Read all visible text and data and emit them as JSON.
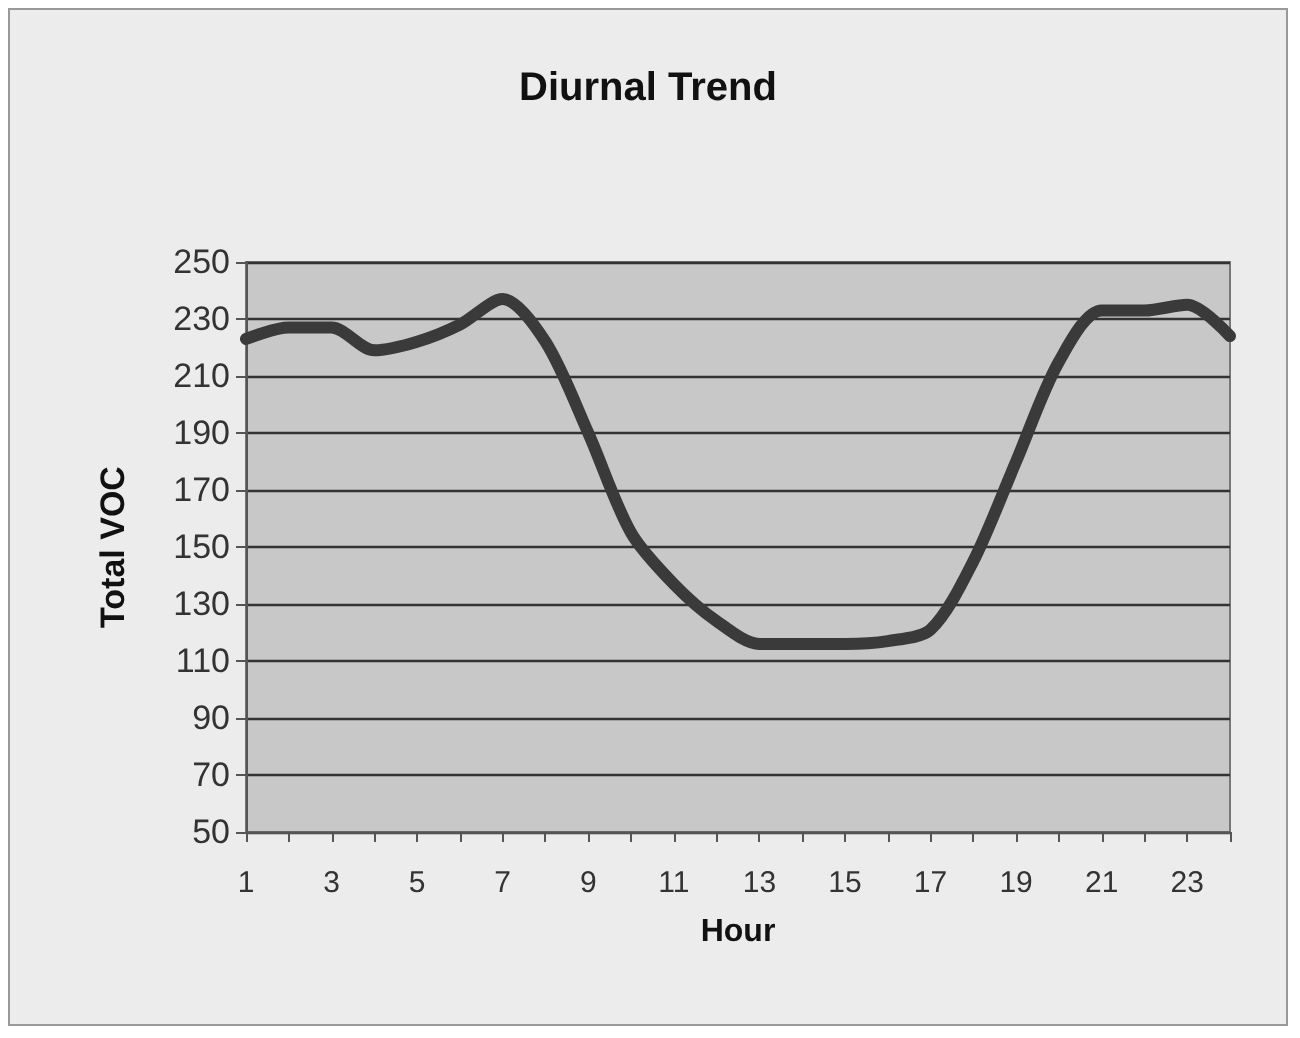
{
  "chart_data": {
    "type": "line",
    "title": "Diurnal Trend",
    "xlabel": "Hour",
    "ylabel": "Total VOC",
    "x": [
      1,
      2,
      3,
      4,
      5,
      6,
      7,
      8,
      9,
      10,
      11,
      12,
      13,
      14,
      15,
      16,
      17,
      18,
      19,
      20,
      21,
      22,
      23,
      24
    ],
    "series": [
      {
        "color": "#3a3a3a",
        "values": [
          223,
          227,
          227,
          219,
          222,
          228,
          237,
          222,
          190,
          155,
          137,
          124,
          116,
          116,
          116,
          117,
          121,
          145,
          180,
          215,
          233,
          233,
          235,
          224
        ]
      }
    ],
    "xlim": [
      1,
      24
    ],
    "xticks": [
      1,
      {
        "value": 2,
        "label": null
      },
      3,
      {
        "value": 4,
        "label": null
      },
      5,
      {
        "value": 6,
        "label": null
      },
      7,
      {
        "value": 8,
        "label": null
      },
      9,
      {
        "value": 10,
        "label": null
      },
      11,
      {
        "value": 12,
        "label": null
      },
      13,
      {
        "value": 14,
        "label": null
      },
      15,
      {
        "value": 16,
        "label": null
      },
      17,
      {
        "value": 18,
        "label": null
      },
      19,
      {
        "value": 20,
        "label": null
      },
      21,
      {
        "value": 22,
        "label": null
      },
      23,
      {
        "value": 24,
        "label": null
      }
    ],
    "ylim": [
      50,
      250
    ],
    "yticks": [
      50,
      70,
      90,
      110,
      130,
      150,
      170,
      190,
      210,
      230,
      250
    ],
    "grid": "y",
    "marker": "none",
    "line_style": "solid"
  }
}
